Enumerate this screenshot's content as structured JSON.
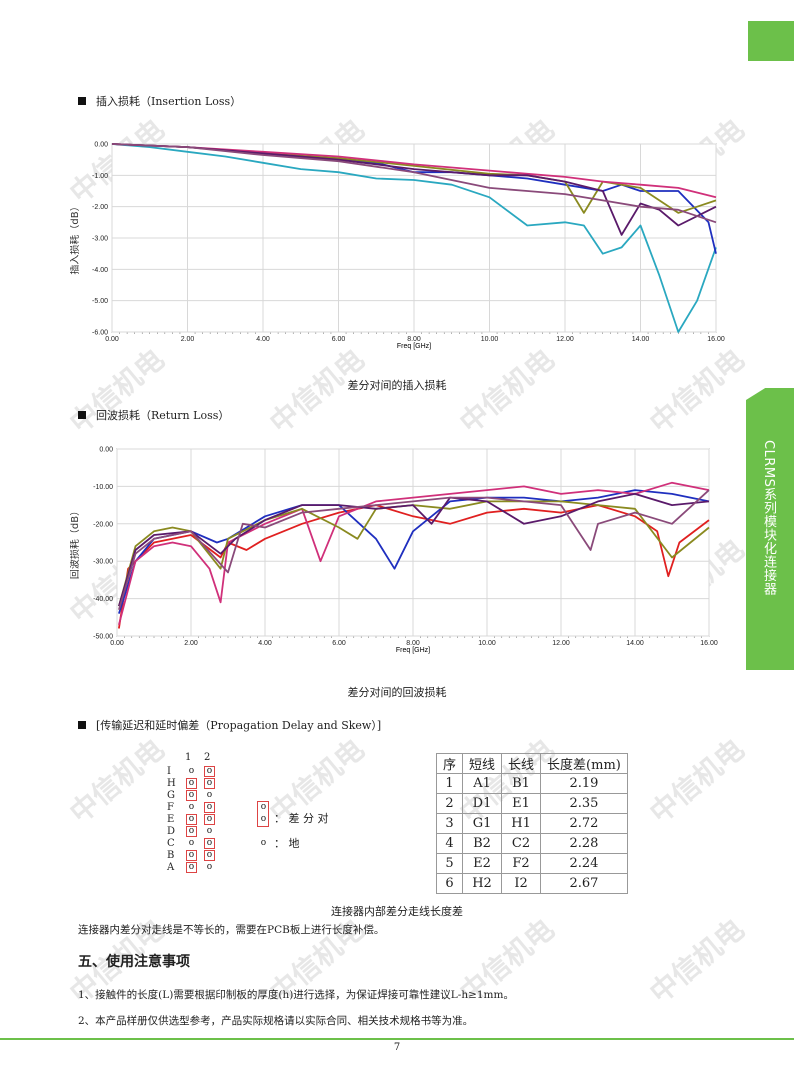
{
  "side_tab": {
    "text": "CLRMS系列模块化连接器",
    "color": "#6cc04a"
  },
  "watermark": "中信机电",
  "insertion": {
    "heading": "插入损耗（Insertion Loss）",
    "caption": "差分对间的插入损耗",
    "ylabel": "插入损耗（dB）",
    "xlabel": "Freq [GHz]",
    "yticks": [
      "0.00",
      "-1.00",
      "-2.00",
      "-3.00",
      "-4.00",
      "-5.00",
      "-6.00"
    ],
    "xticks": [
      "0.00",
      "2.00",
      "4.00",
      "6.00",
      "8.00",
      "10.00",
      "12.00",
      "14.00",
      "16.00"
    ]
  },
  "return_loss": {
    "heading": "回波损耗（Return Loss）",
    "caption": "差分对间的回波损耗",
    "ylabel": "回波损耗（dB）",
    "xlabel": "Freq [GHz]",
    "yticks": [
      "0.00",
      "-10.00",
      "-20.00",
      "-30.00",
      "-40.00",
      "-50.00"
    ],
    "xticks": [
      "0.00",
      "2.00",
      "4.00",
      "6.00",
      "8.00",
      "10.00",
      "12.00",
      "14.00",
      "16.00"
    ]
  },
  "chart_data": [
    {
      "type": "line",
      "xlabel": "Freq [GHz]",
      "ylabel": "插入损耗（dB）",
      "xlim": [
        0,
        16
      ],
      "ylim": [
        -6,
        0
      ],
      "grid": true,
      "series": [
        {
          "color": "#2aa8c0",
          "x": [
            0,
            1,
            2,
            3,
            4,
            5,
            6,
            7,
            8,
            9,
            10,
            11,
            12,
            12.5,
            13,
            13.5,
            14,
            14.5,
            15,
            15.5,
            16
          ],
          "y": [
            0,
            -0.1,
            -0.25,
            -0.4,
            -0.6,
            -0.8,
            -0.9,
            -1.1,
            -1.15,
            -1.3,
            -1.7,
            -2.6,
            -2.5,
            -2.6,
            -3.5,
            -3.3,
            -2.6,
            -4.2,
            -6.0,
            -5.0,
            -3.3
          ]
        },
        {
          "color": "#1f2fbf",
          "x": [
            0,
            2,
            4,
            6,
            7,
            8,
            9,
            10,
            11,
            12,
            13,
            13.5,
            14,
            15,
            15.8,
            16
          ],
          "y": [
            0,
            -0.1,
            -0.3,
            -0.5,
            -0.6,
            -0.9,
            -0.9,
            -1.0,
            -1.1,
            -1.3,
            -1.5,
            -1.3,
            -1.5,
            -1.5,
            -2.5,
            -3.5
          ]
        },
        {
          "color": "#8a8a20",
          "x": [
            0,
            2,
            4,
            6,
            8,
            10,
            11,
            12,
            12.5,
            13,
            14,
            14.5,
            15,
            15.5,
            16
          ],
          "y": [
            0,
            -0.1,
            -0.3,
            -0.45,
            -0.7,
            -0.95,
            -1.0,
            -1.2,
            -2.2,
            -1.2,
            -1.4,
            -1.8,
            -2.2,
            -2.0,
            -1.8
          ]
        },
        {
          "color": "#d0307a",
          "x": [
            0,
            2,
            4,
            6,
            8,
            10,
            11,
            12,
            13,
            14,
            15,
            16
          ],
          "y": [
            0,
            -0.1,
            -0.25,
            -0.4,
            -0.65,
            -0.85,
            -0.95,
            -1.05,
            -1.2,
            -1.3,
            -1.4,
            -1.7
          ]
        },
        {
          "color": "#5a1a6a",
          "x": [
            0,
            2,
            4,
            6,
            8,
            10,
            11,
            12,
            13,
            13.5,
            14,
            14.5,
            15,
            16
          ],
          "y": [
            0,
            -0.1,
            -0.3,
            -0.5,
            -0.8,
            -1.0,
            -1.0,
            -1.2,
            -1.5,
            -2.9,
            -1.9,
            -2.1,
            -2.6,
            -2.0
          ]
        },
        {
          "color": "#8a4a7a",
          "x": [
            0,
            2,
            4,
            6,
            8,
            10,
            11,
            12,
            13,
            14,
            15,
            16
          ],
          "y": [
            0,
            -0.1,
            -0.35,
            -0.55,
            -0.9,
            -1.4,
            -1.5,
            -1.6,
            -1.8,
            -2.0,
            -2.1,
            -2.5
          ]
        }
      ]
    },
    {
      "type": "line",
      "xlabel": "Freq [GHz]",
      "ylabel": "回波损耗（dB）",
      "xlim": [
        0,
        16
      ],
      "ylim": [
        -50,
        0
      ],
      "grid": true,
      "series": [
        {
          "color": "#e02020",
          "x": [
            0.05,
            0.3,
            1,
            2,
            2.8,
            3,
            3.5,
            4,
            5,
            6,
            7,
            8,
            9,
            10,
            11,
            12,
            13,
            14,
            14.6,
            14.9,
            15.2,
            16
          ],
          "y": [
            -48,
            -32,
            -25,
            -23,
            -29,
            -25,
            -27,
            -24,
            -20,
            -17,
            -15,
            -18,
            -20,
            -17,
            -16,
            -17,
            -15,
            -18,
            -22,
            -34,
            -25,
            -19
          ]
        },
        {
          "color": "#1f2fbf",
          "x": [
            0.05,
            0.5,
            1,
            2,
            2.7,
            3,
            4,
            5,
            6,
            7,
            7.5,
            8,
            9,
            10,
            11,
            12,
            13,
            14,
            15,
            16
          ],
          "y": [
            -44,
            -30,
            -24,
            -22,
            -25,
            -24,
            -18,
            -15,
            -15,
            -24,
            -32,
            -22,
            -14,
            -13,
            -13,
            -14,
            -13,
            -11,
            -12,
            -14
          ]
        },
        {
          "color": "#d0307a",
          "x": [
            0.05,
            0.5,
            1,
            1.5,
            2,
            2.5,
            2.8,
            3,
            4,
            5,
            5.5,
            6,
            7,
            8,
            9,
            10,
            11,
            12,
            13,
            14,
            15,
            16
          ],
          "y": [
            -47,
            -30,
            -26,
            -25,
            -26,
            -32,
            -41,
            -25,
            -20,
            -16,
            -30,
            -18,
            -14,
            -13,
            -12,
            -11,
            -10,
            -12,
            -11,
            -12,
            -9,
            -11
          ]
        },
        {
          "color": "#8a8a20",
          "x": [
            0.05,
            0.5,
            1,
            1.5,
            2,
            2.8,
            3,
            4,
            5,
            6,
            6.5,
            7,
            8,
            9,
            10,
            11,
            12,
            13,
            14,
            15,
            16
          ],
          "y": [
            -42,
            -26,
            -22,
            -21,
            -22,
            -32,
            -24,
            -19,
            -16,
            -21,
            -24,
            -16,
            -15,
            -16,
            -14,
            -14,
            -14,
            -15,
            -16,
            -29,
            -21
          ]
        },
        {
          "color": "#5a1a6a",
          "x": [
            0.05,
            0.5,
            1,
            2,
            2.8,
            3.2,
            4,
            5,
            6,
            7,
            8,
            8.5,
            9,
            10,
            11,
            12,
            13,
            14,
            15,
            16
          ],
          "y": [
            -42,
            -27,
            -23,
            -22,
            -28,
            -24,
            -19,
            -15,
            -15,
            -16,
            -15,
            -20,
            -13,
            -14,
            -20,
            -18,
            -14,
            -12,
            -15,
            -14
          ]
        },
        {
          "color": "#8a4a7a",
          "x": [
            0.05,
            0.5,
            1,
            2,
            3,
            3.4,
            4,
            5,
            6,
            7,
            8,
            9,
            10,
            11,
            12,
            12.8,
            13,
            14,
            15,
            16
          ],
          "y": [
            -43,
            -28,
            -24,
            -22,
            -33,
            -20,
            -21,
            -17,
            -16,
            -15,
            -14,
            -13,
            -13,
            -14,
            -15,
            -27,
            -20,
            -17,
            -20,
            -11
          ]
        }
      ]
    }
  ],
  "skew_section": {
    "heading": "[传输延迟和延时偏差（Propagation Delay and Skew）]",
    "col_labels": [
      "1",
      "2"
    ],
    "row_labels": [
      "I",
      "H",
      "G",
      "F",
      "E",
      "D",
      "C",
      "B",
      "A"
    ],
    "legend_pair": "：  差 分 对",
    "legend_ground": "：  地",
    "pin_glyph": "o",
    "table_header": [
      "序",
      "短线",
      "长线",
      "长度差(mm)"
    ],
    "table_rows": [
      [
        "1",
        "A1",
        "B1",
        "2.19"
      ],
      [
        "2",
        "D1",
        "E1",
        "2.35"
      ],
      [
        "3",
        "G1",
        "H1",
        "2.72"
      ],
      [
        "4",
        "B2",
        "C2",
        "2.28"
      ],
      [
        "5",
        "E2",
        "F2",
        "2.24"
      ],
      [
        "6",
        "H2",
        "I2",
        "2.67"
      ]
    ],
    "caption": "连接器内部差分走线长度差",
    "note": "连接器内差分对走线是不等长的，需要在PCB板上进行长度补偿。"
  },
  "notes": {
    "title": "五、使用注意事项",
    "item1": "1、接触件的长度(L)需要根据印制板的厚度(h)进行选择，为保证焊接可靠性建议L-h≥1mm。",
    "item2": "2、本产品样册仅供选型参考，产品实际规格请以实际合同、相关技术规格书等为准。"
  },
  "page_number": "7"
}
